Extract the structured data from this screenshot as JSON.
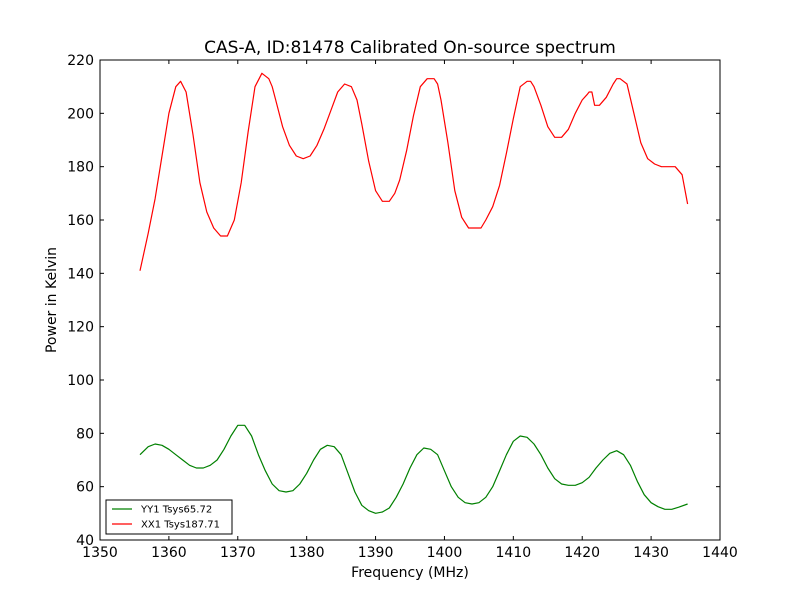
{
  "chart_data": {
    "type": "line",
    "title": "CAS-A, ID:81478 Calibrated On-source spectrum",
    "xlabel": "Frequency (MHz)",
    "ylabel": "Power in Kelvin",
    "xlim": [
      1350,
      1440
    ],
    "ylim": [
      40,
      220
    ],
    "xticks": [
      1350,
      1360,
      1370,
      1380,
      1390,
      1400,
      1410,
      1420,
      1430,
      1440
    ],
    "yticks": [
      40,
      60,
      80,
      100,
      120,
      140,
      160,
      180,
      200,
      220
    ],
    "grid": false,
    "legend_position": "lower-left",
    "series": [
      {
        "name": "YY1 Tsys65.72",
        "color": "#008000",
        "x": [
          1355.8,
          1357.0,
          1358.0,
          1359.0,
          1360.0,
          1361.0,
          1362.0,
          1363.0,
          1364.0,
          1365.0,
          1366.0,
          1367.0,
          1368.0,
          1369.0,
          1370.0,
          1371.0,
          1372.0,
          1373.0,
          1374.0,
          1375.0,
          1376.0,
          1377.0,
          1378.0,
          1379.0,
          1380.0,
          1381.0,
          1382.0,
          1383.0,
          1384.0,
          1385.0,
          1386.0,
          1387.0,
          1388.0,
          1389.0,
          1390.0,
          1391.0,
          1392.0,
          1393.0,
          1394.0,
          1395.0,
          1396.0,
          1397.0,
          1398.0,
          1399.0,
          1400.0,
          1401.0,
          1402.0,
          1403.0,
          1404.0,
          1405.0,
          1406.0,
          1407.0,
          1408.0,
          1409.0,
          1410.0,
          1411.0,
          1412.0,
          1413.0,
          1414.0,
          1415.0,
          1416.0,
          1417.0,
          1418.0,
          1419.0,
          1420.0,
          1421.0,
          1422.0,
          1423.0,
          1424.0,
          1425.0,
          1426.0,
          1427.0,
          1428.0,
          1429.0,
          1430.0,
          1431.0,
          1432.0,
          1433.0,
          1434.0,
          1435.3
        ],
        "y": [
          72,
          75,
          76,
          75.5,
          74,
          72,
          70,
          68,
          67,
          67,
          68,
          70,
          74,
          79,
          83,
          83,
          79,
          72,
          66,
          61,
          58.5,
          58,
          58.5,
          61,
          65,
          70,
          74,
          75.5,
          75,
          72,
          65,
          58,
          53,
          51,
          50,
          50.5,
          52,
          56,
          61,
          67,
          72,
          74.5,
          74,
          72,
          66,
          60,
          56,
          54,
          53.5,
          54,
          56,
          60,
          66,
          72,
          77,
          79,
          78.5,
          76,
          72,
          67,
          63,
          61,
          60.5,
          60.5,
          61.5,
          63.5,
          67,
          70,
          72.5,
          73.5,
          72,
          68,
          62,
          57,
          54,
          52.5,
          51.5,
          51.5,
          52.3,
          53.5
        ]
      },
      {
        "name": "XX1 Tsys187.71",
        "color": "#ff0000",
        "x": [
          1355.8,
          1357.0,
          1358.0,
          1359.0,
          1360.0,
          1361.0,
          1361.7,
          1362.5,
          1363.5,
          1364.5,
          1365.5,
          1366.5,
          1367.5,
          1368.5,
          1369.5,
          1370.5,
          1371.5,
          1372.5,
          1373.5,
          1374.5,
          1375.0,
          1375.5,
          1376.5,
          1377.5,
          1378.5,
          1379.5,
          1380.5,
          1381.5,
          1382.5,
          1383.5,
          1384.5,
          1385.5,
          1386.5,
          1387.3,
          1388.0,
          1389.0,
          1390.0,
          1391.0,
          1392.0,
          1392.8,
          1393.5,
          1394.5,
          1395.5,
          1396.5,
          1397.5,
          1398.5,
          1399.0,
          1399.5,
          1400.5,
          1401.5,
          1402.5,
          1403.5,
          1404.5,
          1405.3,
          1406.0,
          1407.0,
          1408.0,
          1409.0,
          1410.0,
          1411.0,
          1412.0,
          1412.5,
          1413.0,
          1414.0,
          1415.0,
          1416.0,
          1417.0,
          1418.0,
          1419.0,
          1420.0,
          1420.7,
          1421.0,
          1421.4,
          1421.8,
          1422.5,
          1423.5,
          1424.5,
          1425.0,
          1425.5,
          1426.5,
          1427.5,
          1428.5,
          1429.5,
          1430.5,
          1431.5,
          1432.5,
          1433.5,
          1434.5,
          1435.3
        ],
        "y": [
          141,
          155,
          168,
          184,
          200,
          210,
          212,
          208,
          192,
          174,
          163,
          157,
          154,
          154,
          160,
          174,
          193,
          210,
          215,
          213,
          210,
          205,
          195,
          188,
          184,
          183,
          184,
          188,
          194,
          201,
          208,
          211,
          210,
          205,
          196,
          182,
          171,
          167,
          167,
          170,
          175,
          186,
          199,
          210,
          213,
          213,
          211,
          205,
          189,
          171,
          161,
          157,
          157,
          157,
          160,
          165,
          173,
          185,
          198,
          210,
          212,
          212,
          210,
          203,
          195,
          191,
          191,
          194,
          200,
          205,
          207,
          208,
          208,
          203,
          203,
          206,
          211,
          213,
          213,
          211,
          200,
          189,
          183,
          181,
          180,
          180,
          180,
          177,
          166
        ]
      }
    ]
  }
}
